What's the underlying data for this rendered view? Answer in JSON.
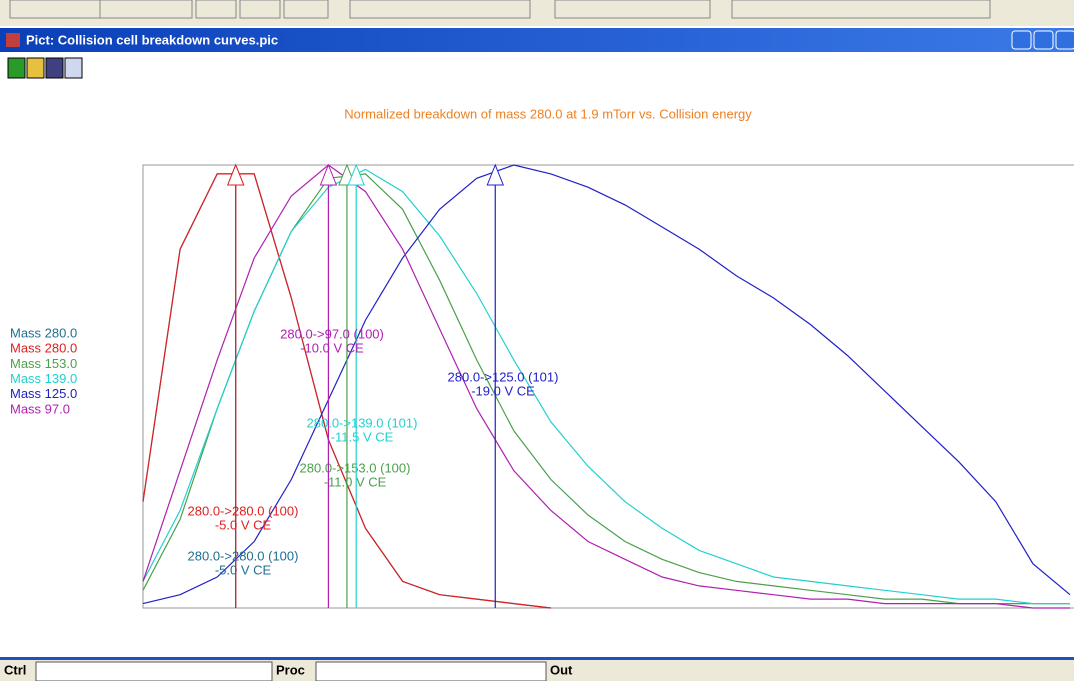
{
  "window": {
    "title": "Pict: Collision cell breakdown curves.pic"
  },
  "statusbar": {
    "fields": [
      "Ctrl",
      "Proc",
      "Out"
    ]
  },
  "chart_data": {
    "type": "line",
    "title": "Normalized breakdown of mass 280.0 at 1.9 mTorr vs. Collision energy",
    "xlim": [
      0,
      -50
    ],
    "ylim": [
      0,
      100
    ],
    "x": [
      0,
      -2,
      -4,
      -6,
      -8,
      -10,
      -12,
      -14,
      -16,
      -18,
      -20,
      -22,
      -24,
      -26,
      -28,
      -30,
      -32,
      -34,
      -36,
      -38,
      -40,
      -42,
      -44,
      -46,
      -48,
      -50
    ],
    "series": [
      {
        "name": "Mass 280.0",
        "color": "#1f6f8f",
        "values": [
          24,
          81,
          98,
          98,
          70,
          38,
          18,
          6,
          3,
          2,
          1,
          0,
          null,
          null,
          null,
          null,
          null,
          null,
          null,
          null,
          null,
          null,
          null,
          null,
          null,
          null
        ]
      },
      {
        "name": "Mass 280.0",
        "color": "#e02020",
        "values": [
          24,
          81,
          98,
          98,
          70,
          38,
          18,
          6,
          3,
          2,
          1,
          0,
          null,
          null,
          null,
          null,
          null,
          null,
          null,
          null,
          null,
          null,
          null,
          null,
          null,
          null
        ]
      },
      {
        "name": "Mass 153.0",
        "color": "#4ca04c",
        "values": [
          4,
          20,
          45,
          67,
          85,
          97,
          98,
          90,
          74,
          56,
          40,
          29,
          21,
          15,
          11,
          8,
          6,
          5,
          4,
          3,
          2,
          2,
          1,
          1,
          1,
          1
        ]
      },
      {
        "name": "Mass 139.0",
        "color": "#22d0d0",
        "values": [
          6,
          22,
          45,
          67,
          85,
          95,
          99,
          94,
          84,
          71,
          56,
          42,
          32,
          24,
          18,
          13,
          10,
          7,
          6,
          5,
          4,
          3,
          2,
          2,
          1,
          1
        ]
      },
      {
        "name": "Mass 125.0",
        "color": "#2020c8",
        "values": [
          1,
          3,
          7,
          15,
          29,
          47,
          65,
          79,
          90,
          97,
          100,
          98,
          95,
          91,
          86,
          81,
          75,
          70,
          64,
          57,
          49,
          41,
          33,
          24,
          10,
          3
        ]
      },
      {
        "name": "Mass 97.0",
        "color": "#b020b0",
        "values": [
          6,
          31,
          56,
          79,
          93,
          100,
          94,
          81,
          63,
          45,
          31,
          22,
          15,
          11,
          7,
          5,
          4,
          3,
          2,
          2,
          1,
          1,
          1,
          1,
          0,
          0
        ]
      }
    ],
    "annotations": [
      {
        "x": -5,
        "text": "280.0->280.0 (100)",
        "energy_label": "-5.0 V CE"
      },
      {
        "x": -5,
        "text": "280.0->280.0 (100)",
        "energy_label": "-5.0 V CE"
      },
      {
        "x": -11,
        "text": "280.0->153.0 (100)",
        "energy_label": "-11.0 V CE"
      },
      {
        "x": -11.5,
        "text": "280.0->139.0 (101)",
        "energy_label": "-11.5 V CE"
      },
      {
        "x": -19,
        "text": "280.0->125.0 (101)",
        "energy_label": "-19.0 V CE"
      },
      {
        "x": -10,
        "text": "280.0->97.0 (100)",
        "energy_label": "-10.0 V CE"
      }
    ]
  }
}
